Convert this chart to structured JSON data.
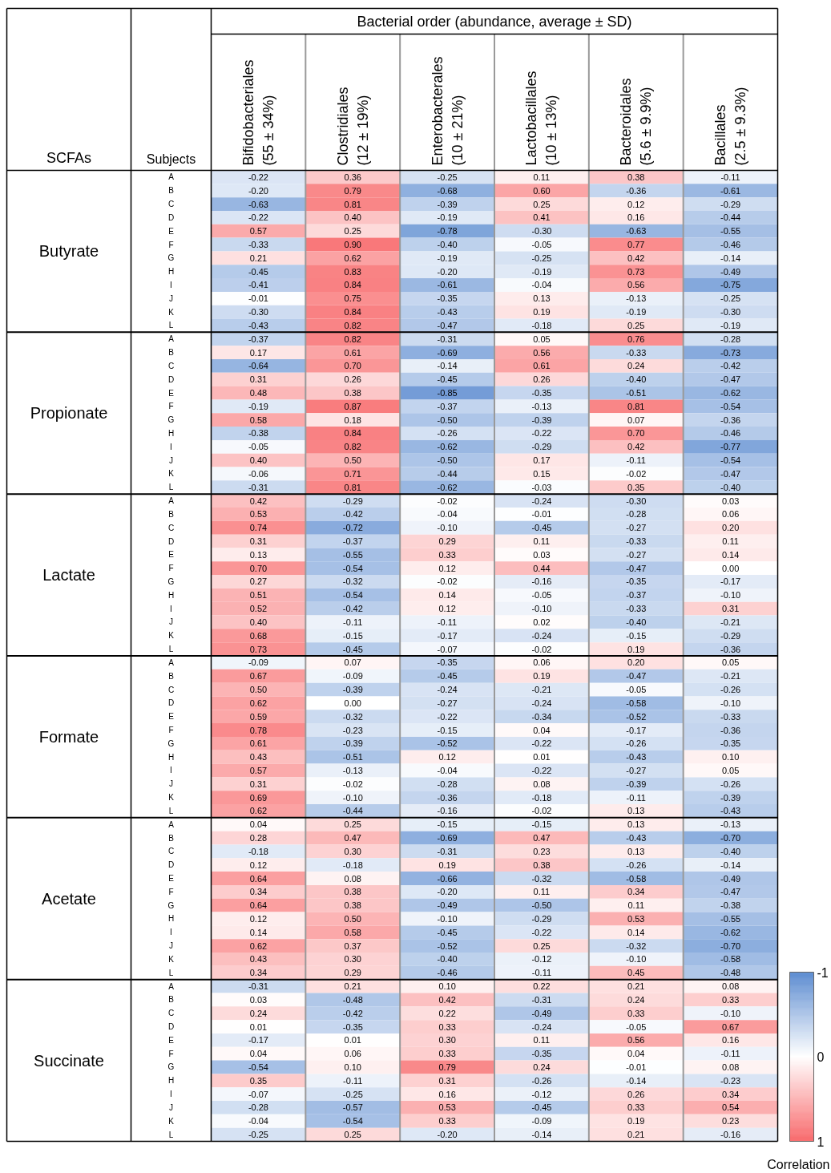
{
  "chart_data": {
    "type": "heatmap",
    "title": "Bacterial order (abundance, average ± SD)",
    "ylabel": "Subjects",
    "clabel": "Correlation",
    "clim": [
      -1,
      1
    ],
    "cticks": [
      -1,
      0,
      1
    ],
    "annotations": [
      "SCFAs",
      "Butyrate",
      "Propionate",
      "Lactate",
      "Formate",
      "Acetate",
      "Succinate"
    ],
    "categories": [
      "Bifidobacteriales\n(55 ± 34%)",
      "Clostridiales\n(12 ± 19%)",
      "Enterobacterales\n(10 ± 21%)",
      "Lactobacillales\n(10 ± 13%)",
      "Bacteroidales\n(5.6 ± 9.9%)",
      "Bacillales\n(2.5 ± 9.3%)"
    ],
    "y_categories": [
      "A",
      "B",
      "C",
      "D",
      "E",
      "F",
      "G",
      "H",
      "I",
      "J",
      "K",
      "L",
      "A",
      "B",
      "C",
      "D",
      "E",
      "F",
      "G",
      "H",
      "I",
      "J",
      "K",
      "L",
      "A",
      "B",
      "C",
      "D",
      "E",
      "F",
      "G",
      "H",
      "I",
      "J",
      "K",
      "L",
      "A",
      "B",
      "C",
      "D",
      "E",
      "F",
      "G",
      "H",
      "I",
      "J",
      "K",
      "L",
      "A",
      "B",
      "C",
      "D",
      "E",
      "F",
      "G",
      "H",
      "I",
      "J",
      "K",
      "L",
      "A",
      "B",
      "C",
      "D",
      "E",
      "F",
      "G",
      "H",
      "I",
      "J",
      "K",
      "L"
    ],
    "cells": [
      [
        -0.22,
        0.36,
        -0.25,
        0.11,
        0.38,
        -0.11
      ],
      [
        -0.2,
        0.79,
        -0.68,
        0.6,
        -0.36,
        -0.61
      ],
      [
        -0.63,
        0.81,
        -0.39,
        0.25,
        0.12,
        -0.29
      ],
      [
        -0.22,
        0.4,
        -0.19,
        0.41,
        0.16,
        -0.44
      ],
      [
        0.57,
        0.25,
        -0.78,
        -0.3,
        -0.63,
        -0.55
      ],
      [
        -0.33,
        0.9,
        -0.4,
        -0.05,
        0.77,
        -0.46
      ],
      [
        0.21,
        0.62,
        -0.19,
        -0.25,
        0.42,
        -0.14
      ],
      [
        -0.45,
        0.83,
        -0.2,
        -0.19,
        0.73,
        -0.49
      ],
      [
        -0.41,
        0.84,
        -0.61,
        -0.04,
        0.56,
        -0.75
      ],
      [
        -0.01,
        0.75,
        -0.35,
        0.13,
        -0.13,
        -0.25
      ],
      [
        -0.3,
        0.84,
        -0.43,
        0.19,
        -0.19,
        -0.3
      ],
      [
        -0.43,
        0.82,
        -0.47,
        -0.18,
        0.25,
        -0.19
      ],
      [
        -0.37,
        0.82,
        -0.31,
        0.05,
        0.76,
        -0.28
      ],
      [
        0.17,
        0.61,
        -0.69,
        0.56,
        -0.33,
        -0.73
      ],
      [
        -0.64,
        0.7,
        -0.14,
        0.61,
        0.24,
        -0.42
      ],
      [
        0.31,
        0.26,
        -0.45,
        0.26,
        -0.4,
        -0.47
      ],
      [
        0.48,
        0.38,
        -0.85,
        -0.35,
        -0.51,
        -0.62
      ],
      [
        -0.19,
        0.87,
        -0.37,
        -0.13,
        0.81,
        -0.54
      ],
      [
        0.58,
        0.18,
        -0.5,
        -0.39,
        0.07,
        -0.36
      ],
      [
        -0.38,
        0.84,
        -0.26,
        -0.22,
        0.7,
        -0.46
      ],
      [
        -0.05,
        0.82,
        -0.62,
        -0.29,
        0.42,
        -0.77
      ],
      [
        0.4,
        0.5,
        -0.5,
        0.17,
        -0.11,
        -0.54
      ],
      [
        -0.06,
        0.71,
        -0.44,
        0.15,
        -0.02,
        -0.47
      ],
      [
        -0.31,
        0.81,
        -0.62,
        -0.03,
        0.35,
        -0.4
      ],
      [
        0.42,
        -0.29,
        -0.02,
        -0.24,
        -0.3,
        0.03
      ],
      [
        0.53,
        -0.42,
        -0.04,
        -0.01,
        -0.28,
        0.06
      ],
      [
        0.74,
        -0.72,
        -0.1,
        -0.45,
        -0.27,
        0.2
      ],
      [
        0.31,
        -0.37,
        0.29,
        0.11,
        -0.33,
        0.11
      ],
      [
        0.13,
        -0.55,
        0.33,
        0.03,
        -0.27,
        0.14
      ],
      [
        0.7,
        -0.54,
        0.12,
        0.44,
        -0.47,
        0.0
      ],
      [
        0.27,
        -0.32,
        -0.02,
        -0.16,
        -0.35,
        -0.17
      ],
      [
        0.51,
        -0.54,
        0.14,
        -0.05,
        -0.37,
        -0.1
      ],
      [
        0.52,
        -0.42,
        0.12,
        -0.1,
        -0.33,
        0.31
      ],
      [
        0.4,
        -0.11,
        -0.11,
        0.02,
        -0.4,
        -0.21
      ],
      [
        0.68,
        -0.15,
        -0.17,
        -0.24,
        -0.15,
        -0.29
      ],
      [
        0.73,
        -0.45,
        -0.07,
        -0.02,
        0.19,
        -0.36
      ],
      [
        -0.09,
        0.07,
        -0.35,
        0.06,
        0.2,
        0.05
      ],
      [
        0.67,
        -0.09,
        -0.45,
        0.19,
        -0.47,
        -0.21
      ],
      [
        0.5,
        -0.39,
        -0.24,
        -0.21,
        -0.05,
        -0.26
      ],
      [
        0.62,
        0.0,
        -0.27,
        -0.24,
        -0.58,
        -0.1
      ],
      [
        0.59,
        -0.32,
        -0.22,
        -0.34,
        -0.52,
        -0.33
      ],
      [
        0.78,
        -0.23,
        -0.15,
        0.04,
        -0.17,
        -0.36
      ],
      [
        0.61,
        -0.39,
        -0.52,
        -0.22,
        -0.26,
        -0.35
      ],
      [
        0.43,
        -0.51,
        0.12,
        0.01,
        -0.43,
        0.1
      ],
      [
        0.57,
        -0.13,
        -0.04,
        -0.22,
        -0.27,
        0.05
      ],
      [
        0.31,
        -0.02,
        -0.28,
        0.08,
        -0.39,
        -0.26
      ],
      [
        0.69,
        -0.1,
        -0.36,
        -0.18,
        -0.11,
        -0.39
      ],
      [
        0.62,
        -0.44,
        -0.16,
        -0.02,
        0.13,
        -0.43
      ],
      [
        0.04,
        0.25,
        -0.15,
        -0.15,
        0.13,
        -0.13
      ],
      [
        0.28,
        0.47,
        -0.69,
        0.47,
        -0.43,
        -0.7
      ],
      [
        -0.18,
        0.3,
        -0.31,
        0.23,
        0.13,
        -0.4
      ],
      [
        0.12,
        -0.18,
        0.19,
        0.38,
        -0.26,
        -0.14
      ],
      [
        0.64,
        0.08,
        -0.66,
        -0.32,
        -0.58,
        -0.49
      ],
      [
        0.34,
        0.38,
        -0.2,
        0.11,
        0.34,
        -0.47
      ],
      [
        0.64,
        0.38,
        -0.49,
        -0.5,
        0.11,
        -0.38
      ],
      [
        0.12,
        0.5,
        -0.1,
        -0.29,
        0.53,
        -0.55
      ],
      [
        0.14,
        0.58,
        -0.45,
        -0.22,
        0.14,
        -0.62
      ],
      [
        0.62,
        0.37,
        -0.52,
        0.25,
        -0.32,
        -0.7
      ],
      [
        0.43,
        0.3,
        -0.4,
        -0.12,
        -0.1,
        -0.58
      ],
      [
        0.34,
        0.29,
        -0.46,
        -0.11,
        0.45,
        -0.48
      ],
      [
        -0.31,
        0.21,
        0.1,
        0.22,
        0.21,
        0.08
      ],
      [
        0.03,
        -0.48,
        0.42,
        -0.31,
        0.24,
        0.33
      ],
      [
        0.24,
        -0.42,
        0.22,
        -0.49,
        0.33,
        -0.1
      ],
      [
        0.01,
        -0.35,
        0.33,
        -0.24,
        -0.05,
        0.67
      ],
      [
        -0.17,
        0.01,
        0.3,
        0.11,
        0.56,
        0.16
      ],
      [
        0.04,
        0.06,
        0.33,
        -0.35,
        0.04,
        -0.11
      ],
      [
        -0.54,
        0.1,
        0.79,
        0.24,
        -0.01,
        0.08
      ],
      [
        0.35,
        -0.11,
        0.31,
        -0.26,
        -0.14,
        -0.23
      ],
      [
        -0.07,
        -0.25,
        0.16,
        -0.12,
        0.26,
        0.34
      ],
      [
        -0.28,
        -0.57,
        0.53,
        -0.45,
        0.33,
        0.54
      ],
      [
        -0.04,
        -0.54,
        0.33,
        -0.09,
        0.19,
        0.23
      ],
      [
        -0.25,
        0.25,
        -0.2,
        -0.14,
        0.21,
        -0.16
      ]
    ],
    "cell_labels": [
      [
        "-0.22",
        "0.36",
        "-0.25",
        "0.11",
        "0.38",
        "-0.11"
      ],
      [
        "-0.20",
        "0.79",
        "-0.68",
        "0.60",
        "-0.36",
        "-0.61"
      ],
      [
        "-0.63",
        "0.81",
        "-0.39",
        "0.25",
        "0.12",
        "-0.29"
      ],
      [
        "-0.22",
        "0.40",
        "-0.19",
        "0.41",
        "0.16",
        "-0.44"
      ],
      [
        "0.57",
        "0.25",
        "-0.78",
        "-0.30",
        "-0.63",
        "-0.55"
      ],
      [
        "-0.33",
        "0.90",
        "-0.40",
        "-0.05",
        "0.77",
        "-0.46"
      ],
      [
        "0.21",
        "0.62",
        "-0.19",
        "-0.25",
        "0.42",
        "-0.14"
      ],
      [
        "-0.45",
        "0.83",
        "-0.20",
        "-0.19",
        "0.73",
        "-0.49"
      ],
      [
        "-0.41",
        "0.84",
        "-0.61",
        "-0.04",
        "0.56",
        "-0.75"
      ],
      [
        "-0.01",
        "0.75",
        "-0.35",
        "0.13",
        "-0.13",
        "-0.25"
      ],
      [
        "-0.30",
        "0.84",
        "-0.43",
        "0.19",
        "-0.19",
        "-0.30"
      ],
      [
        "-0.43",
        "0.82",
        "-0.47",
        "-0.18",
        "0.25",
        "-0.19"
      ],
      [
        "-0.37",
        "0.82",
        "-0.31",
        "0.05",
        "0.76",
        "-0.28"
      ],
      [
        "0.17",
        "0.61",
        "-0.69",
        "0.56",
        "-0.33",
        "-0.73"
      ],
      [
        "-0.64",
        "0.70",
        "-0.14",
        "0.61",
        "0.24",
        "-0.42"
      ],
      [
        "0.31",
        "0.26",
        "-0.45",
        "0.26",
        "-0.40",
        "-0.47"
      ],
      [
        "0.48",
        "0.38",
        "-0.85",
        "-0.35",
        "-0.51",
        "-0.62"
      ],
      [
        "-0.19",
        "0.87",
        "-0.37",
        "-0.13",
        "0.81",
        "-0.54"
      ],
      [
        "0.58",
        "0.18",
        "-0.50",
        "-0.39",
        "0.07",
        "-0.36"
      ],
      [
        "-0.38",
        "0.84",
        "-0.26",
        "-0.22",
        "0.70",
        "-0.46"
      ],
      [
        "-0.05",
        "0.82",
        "-0.62",
        "-0.29",
        "0.42",
        "-0.77"
      ],
      [
        "0.40",
        "0.50",
        "-0.50",
        "0.17",
        "-0.11",
        "-0.54"
      ],
      [
        "-0.06",
        "0.71",
        "-0.44",
        "0.15",
        "-0.02",
        "-0.47"
      ],
      [
        "-0.31",
        "0.81",
        "-0.62",
        "-0.03",
        "0.35",
        "-0.40"
      ],
      [
        "0.42",
        "-0.29",
        "-0.02",
        "-0.24",
        "-0.30",
        "0.03"
      ],
      [
        "0.53",
        "-0.42",
        "-0.04",
        "-0.01",
        "-0.28",
        "0.06"
      ],
      [
        "0.74",
        "-0.72",
        "-0.10",
        "-0.45",
        "-0.27",
        "0.20"
      ],
      [
        "0.31",
        "-0.37",
        "0.29",
        "0.11",
        "-0.33",
        "0.11"
      ],
      [
        "0.13",
        "-0.55",
        "0.33",
        "0.03",
        "-0.27",
        "0.14"
      ],
      [
        "0.70",
        "-0.54",
        "0.12",
        "0.44",
        "-0.47",
        "0.00"
      ],
      [
        "0.27",
        "-0.32",
        "-0.02",
        "-0.16",
        "-0.35",
        "-0.17"
      ],
      [
        "0.51",
        "-0.54",
        "0.14",
        "-0.05",
        "-0.37",
        "-0.10"
      ],
      [
        "0.52",
        "-0.42",
        "0.12",
        "-0.10",
        "-0.33",
        "0.31"
      ],
      [
        "0.40",
        "-0.11",
        "-0.11",
        "0.02",
        "-0.40",
        "-0.21"
      ],
      [
        "0.68",
        "-0.15",
        "-0.17",
        "-0.24",
        "-0.15",
        "-0.29"
      ],
      [
        "0.73",
        "-0.45",
        "-0.07",
        "-0.02",
        "0.19",
        "-0.36"
      ],
      [
        "-0.09",
        "0.07",
        "-0.35",
        "0.06",
        "0.20",
        "0.05"
      ],
      [
        "0.67",
        "-0.09",
        "-0.45",
        "0.19",
        "-0.47",
        "-0.21"
      ],
      [
        "0.50",
        "-0.39",
        "-0.24",
        "-0.21",
        "-0.05",
        "-0.26"
      ],
      [
        "0.62",
        "0.00",
        "-0.27",
        "-0.24",
        "-0.58",
        "-0.10"
      ],
      [
        "0.59",
        "-0.32",
        "-0.22",
        "-0.34",
        "-0.52",
        "-0.33"
      ],
      [
        "0.78",
        "-0.23",
        "-0.15",
        "0.04",
        "-0.17",
        "-0.36"
      ],
      [
        "0.61",
        "-0.39",
        "-0.52",
        "-0.22",
        "-0.26",
        "-0.35"
      ],
      [
        "0.43",
        "-0.51",
        "0.12",
        "0.01",
        "-0.43",
        "0.10"
      ],
      [
        "0.57",
        "-0.13",
        "-0.04",
        "-0.22",
        "-0.27",
        "0.05"
      ],
      [
        "0.31",
        "-0.02",
        "-0.28",
        "0.08",
        "-0.39",
        "-0.26"
      ],
      [
        "0.69",
        "-0.10",
        "-0.36",
        "-0.18",
        "-0.11",
        "-0.39"
      ],
      [
        "0.62",
        "-0.44",
        "-0.16",
        "-0.02",
        "0.13",
        "-0.43"
      ],
      [
        "0.04",
        "0.25",
        "-0.15",
        "-0.15",
        "0.13",
        "-0.13"
      ],
      [
        "0.28",
        "0.47",
        "-0.69",
        "0.47",
        "-0.43",
        "-0.70"
      ],
      [
        "-0.18",
        "0.30",
        "-0.31",
        "0.23",
        "0.13",
        "-0.40"
      ],
      [
        "0.12",
        "-0.18",
        "0.19",
        "0.38",
        "-0.26",
        "-0.14"
      ],
      [
        "0.64",
        "0.08",
        "-0.66",
        "-0.32",
        "-0.58",
        "-0.49"
      ],
      [
        "0.34",
        "0.38",
        "-0.20",
        "0.11",
        "0.34",
        "-0.47"
      ],
      [
        "0.64",
        "0.38",
        "-0.49",
        "-0.50",
        "0.11",
        "-0.38"
      ],
      [
        "0.12",
        "0.50",
        "-0.10",
        "-0.29",
        "0.53",
        "-0.55"
      ],
      [
        "0.14",
        "0.58",
        "-0.45",
        "-0.22",
        "0.14",
        "-0.62"
      ],
      [
        "0.62",
        "0.37",
        "-0.52",
        "0.25",
        "-0.32",
        "-0.70"
      ],
      [
        "0.43",
        "0.30",
        "-0.40",
        "-0.12",
        "-0.10",
        "-0.58"
      ],
      [
        "0.34",
        "0.29",
        "-0.46",
        "-0.11",
        "0.45",
        "-0.48"
      ],
      [
        "-0.31",
        "0.21",
        "0.10",
        "0.22",
        "0.21",
        "0.08"
      ],
      [
        "0.03",
        "-0.48",
        "0.42",
        "-0.31",
        "0.24",
        "0.33"
      ],
      [
        "0.24",
        "-0.42",
        "0.22",
        "-0.49",
        "0.33",
        "-0.10"
      ],
      [
        "0.01",
        "-0.35",
        "0.33",
        "-0.24",
        "-0.05",
        "0.67"
      ],
      [
        "-0.17",
        "0.01",
        "0.30",
        "0.11",
        "0.56",
        "0.16"
      ],
      [
        "0.04",
        "0.06",
        "0.33",
        "-0.35",
        "0.04",
        "-0.11"
      ],
      [
        "-0.54",
        "0.10",
        "0.79",
        "0.24",
        "-0.01",
        "0.08"
      ],
      [
        "0.35",
        "-0.11",
        "0.31",
        "-0.26",
        "-0.14",
        "-0.23"
      ],
      [
        "-0.07",
        "-0.25",
        "0.16",
        "-0.12",
        "0.26",
        "0.34"
      ],
      [
        "-0.28",
        "-0.57",
        "0.53",
        "-0.45",
        "0.33",
        "0.54"
      ],
      [
        "-0.04",
        "-0.54",
        "0.33",
        "-0.09",
        "0.19",
        "0.23"
      ],
      [
        "-0.25",
        "0.25",
        "-0.20",
        "-0.14",
        "0.21",
        "-0.16"
      ]
    ]
  }
}
